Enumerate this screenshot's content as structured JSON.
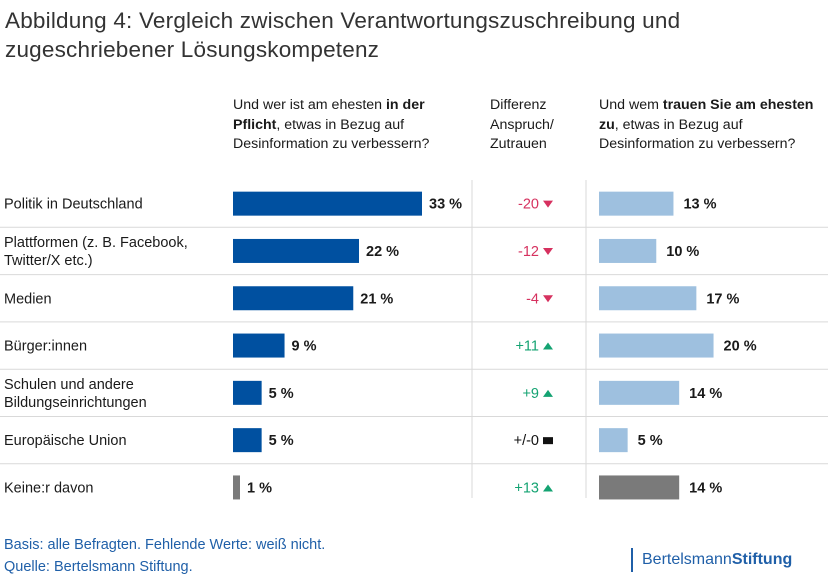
{
  "title": {
    "line1": "Abbildung 4: Vergleich zwischen Verantwortungszuschreibung und",
    "line2": "zugeschriebener Lösungskompetenz"
  },
  "headers": {
    "left": [
      {
        "text": "Und wer ist am ehesten ",
        "bold": false
      },
      {
        "text": "in der Pflicht",
        "bold": true
      },
      {
        "text": ", etwas in Bezug auf Desinformation zu verbessern?",
        "bold": false
      }
    ],
    "middle": "Differenz Anspruch/ Zutrauen",
    "right": [
      {
        "text": "Und wem ",
        "bold": false
      },
      {
        "text": "trauen Sie am ehesten zu",
        "bold": true
      },
      {
        "text": ", etwas in Bezug auf Desinformation zu verbessern?",
        "bold": false
      }
    ]
  },
  "chart_data": {
    "type": "bar",
    "orientation": "horizontal",
    "categories": [
      [
        "Politik in Deutschland"
      ],
      [
        "Plattformen (z. B. Facebook,",
        "Twitter/X etc.)"
      ],
      [
        "Medien"
      ],
      [
        "Bürger:innen"
      ],
      [
        "Schulen und andere",
        "Bildungseinrichtungen"
      ],
      [
        "Europäische Union"
      ],
      [
        "Keine:r davon"
      ]
    ],
    "series": [
      {
        "name": "Pflicht",
        "values": [
          33,
          22,
          21,
          9,
          5,
          5,
          1
        ],
        "labels": [
          "33 %",
          "22 %",
          "21 %",
          "9 %",
          "5 %",
          "5 %",
          "1 %"
        ]
      },
      {
        "name": "Zutrauen",
        "values": [
          13,
          10,
          17,
          20,
          14,
          5,
          14
        ],
        "labels": [
          "13 %",
          "10 %",
          "17 %",
          "20 %",
          "14 %",
          "5 %",
          "14 %"
        ]
      }
    ],
    "differences": [
      {
        "label": "-20",
        "direction": "down"
      },
      {
        "label": "-12",
        "direction": "down"
      },
      {
        "label": "-4",
        "direction": "down"
      },
      {
        "label": "+11",
        "direction": "up"
      },
      {
        "label": "+9",
        "direction": "up"
      },
      {
        "label": "+/-0",
        "direction": "flat"
      },
      {
        "label": "+13",
        "direction": "up"
      }
    ],
    "xlim": [
      0,
      33
    ],
    "unit": "%"
  },
  "colors": {
    "pflicht": "#0050a0",
    "zutrauen": "#9ec0df",
    "neutral": "#7a7a7a",
    "negative": "#d6315f",
    "positive": "#14a372",
    "flat": "#111111",
    "grid": "#d9d9d9"
  },
  "footer": {
    "line1": "Basis: alle Befragten. Fehlende Werte: weiß nicht.",
    "line2": "Quelle: Bertelsmann Stiftung."
  },
  "logo": {
    "part1": "Bertelsmann",
    "part2": "Stiftung"
  }
}
